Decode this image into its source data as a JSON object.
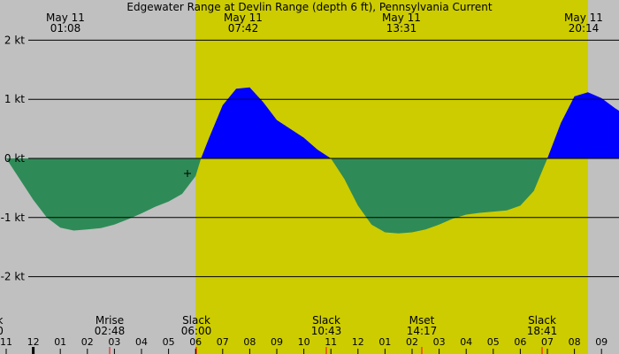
{
  "chart_data": {
    "type": "area",
    "title": "Edgewater Range at Devlin Range (depth 6 ft), Pennsylvania Current",
    "y_ticks": [
      "2 kt",
      "1 kt",
      "0 kt",
      "-1 kt",
      "-2 kt"
    ],
    "y_tick_values": [
      2,
      1,
      0,
      -1,
      -2
    ],
    "ylim": [
      -2.6,
      2.5
    ],
    "x_unit_note": "hours since 23:00 on May 10",
    "xlim": [
      0,
      23
    ],
    "daylight": [
      7.0,
      21.5
    ],
    "colors": {
      "background": "#c0c0c0",
      "daylight": "#cccc00",
      "flood": "#0000ff",
      "ebb": "#2e8b57",
      "slack_tick": "#ff0000"
    },
    "top_labels": [
      {
        "date": "May 11",
        "time": "01:08"
      },
      {
        "date": "May 11",
        "time": "07:42"
      },
      {
        "date": "May 11",
        "time": "13:31"
      },
      {
        "date": "May 11",
        "time": "20:14"
      }
    ],
    "events": [
      {
        "label": "k",
        "time": "0"
      },
      {
        "label": "Mrise",
        "time": "02:48"
      },
      {
        "label": "Slack",
        "time": "06:00"
      },
      {
        "label": "Slack",
        "time": "10:43"
      },
      {
        "label": "Mset",
        "time": "14:17"
      },
      {
        "label": "Slack",
        "time": "18:41"
      }
    ],
    "hour_labels": [
      "11",
      "12",
      "01",
      "02",
      "03",
      "04",
      "05",
      "06",
      "07",
      "08",
      "09",
      "10",
      "11",
      "12",
      "01",
      "02",
      "03",
      "04",
      "05",
      "06",
      "07",
      "08",
      "09"
    ],
    "series": [
      {
        "x": [
          0,
          0.5,
          1,
          1.5,
          2,
          2.5,
          3,
          3.5,
          4,
          4.5,
          5,
          5.5,
          6,
          6.5,
          7,
          7.2,
          7.5,
          8,
          8.5,
          9,
          9.5,
          10,
          10.5,
          11,
          11.5,
          12,
          12.5,
          13,
          13.5,
          14,
          14.5,
          15,
          15.5,
          16,
          16.5,
          17,
          17.5,
          18,
          18.5,
          19,
          19.5,
          20,
          20.5,
          21,
          21.5,
          22,
          22.5,
          23
        ],
        "y": [
          0,
          -0.35,
          -0.7,
          -1.0,
          -1.17,
          -1.22,
          -1.2,
          -1.18,
          -1.12,
          -1.03,
          -0.93,
          -0.82,
          -0.73,
          -0.6,
          -0.3,
          0,
          0.35,
          0.9,
          1.18,
          1.2,
          0.95,
          0.65,
          0.5,
          0.35,
          0.15,
          0,
          -0.35,
          -0.8,
          -1.12,
          -1.25,
          -1.27,
          -1.25,
          -1.2,
          -1.12,
          -1.02,
          -0.95,
          -0.92,
          -0.9,
          -0.88,
          -0.8,
          -0.55,
          0,
          0.6,
          1.05,
          1.12,
          1.02,
          0.85,
          0.7
        ]
      }
    ]
  }
}
